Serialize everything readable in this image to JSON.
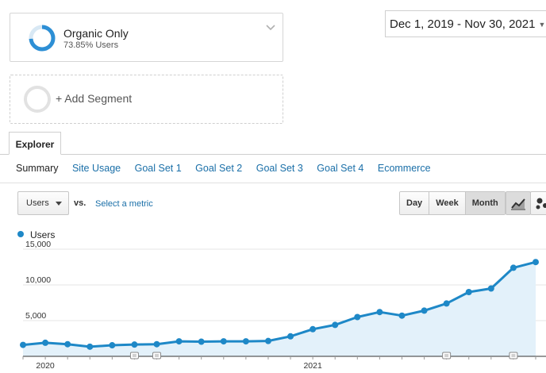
{
  "segment": {
    "name": "Organic Only",
    "subtitle": "73.85% Users",
    "percent": 0.7385,
    "color": "#2d8fd5"
  },
  "add_segment": {
    "label": "+ Add Segment"
  },
  "date_range": {
    "label": "Dec 1, 2019 - Nov 30, 2021"
  },
  "tabs": {
    "explorer": "Explorer"
  },
  "subnav": {
    "items": [
      "Summary",
      "Site Usage",
      "Goal Set 1",
      "Goal Set 2",
      "Goal Set 3",
      "Goal Set 4",
      "Ecommerce"
    ],
    "active": "Summary"
  },
  "controls": {
    "metric": "Users",
    "vs": "vs.",
    "select_metric": "Select a metric",
    "periods": [
      "Day",
      "Week",
      "Month"
    ],
    "active_period": "Month"
  },
  "legend": {
    "series": "Users",
    "color": "#1e88c7"
  },
  "chart_data": {
    "type": "area",
    "series": [
      {
        "name": "Users",
        "values": [
          1600,
          1900,
          1700,
          1350,
          1550,
          1650,
          1700,
          2100,
          2050,
          2100,
          2100,
          2150,
          2800,
          3800,
          4400,
          5500,
          6200,
          5700,
          6400,
          7400,
          9000,
          9500,
          12400,
          13200
        ]
      }
    ],
    "ylim": [
      0,
      16000
    ],
    "yticks": [
      "15,000",
      "10,000",
      "5,000"
    ],
    "ytick_values": [
      15000,
      10000,
      5000
    ],
    "xtick_labels": [
      "2020",
      "2021"
    ],
    "xtick_index": [
      1,
      13
    ],
    "annotations_index": [
      5,
      6,
      19,
      22
    ],
    "grid": true,
    "color": "#1e88c7",
    "fill": "#e3f1fa"
  }
}
